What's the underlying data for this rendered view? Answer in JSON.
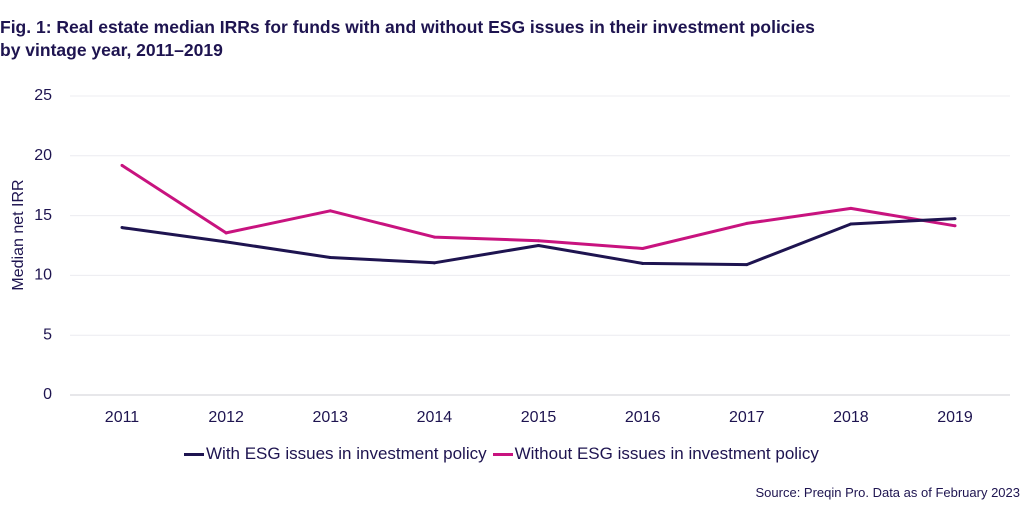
{
  "chart_data": {
    "type": "line",
    "title_line1": "Fig. 1: Real estate median IRRs for funds with and without ESG issues in their investment policies",
    "title_line2": "by vintage year, 2011–2019",
    "xlabel": "",
    "ylabel": "Median net IRR",
    "categories": [
      "2011",
      "2012",
      "2013",
      "2014",
      "2015",
      "2016",
      "2017",
      "2018",
      "2019"
    ],
    "ylim": [
      0,
      25
    ],
    "yticks": [
      0,
      5,
      10,
      15,
      20,
      25
    ],
    "grid": true,
    "legend_position": "bottom",
    "series": [
      {
        "name": "With ESG issues in investment policy",
        "color": "#1e1450",
        "values": [
          14.0,
          12.8,
          11.5,
          11.05,
          12.5,
          11.0,
          10.9,
          14.3,
          14.75
        ]
      },
      {
        "name": "Without ESG issues in investment policy",
        "color": "#c8137f",
        "values": [
          19.2,
          13.55,
          15.4,
          13.2,
          12.9,
          12.25,
          14.35,
          15.6,
          14.15
        ]
      }
    ],
    "source": "Source: Preqin Pro. Data as of February 2023"
  }
}
